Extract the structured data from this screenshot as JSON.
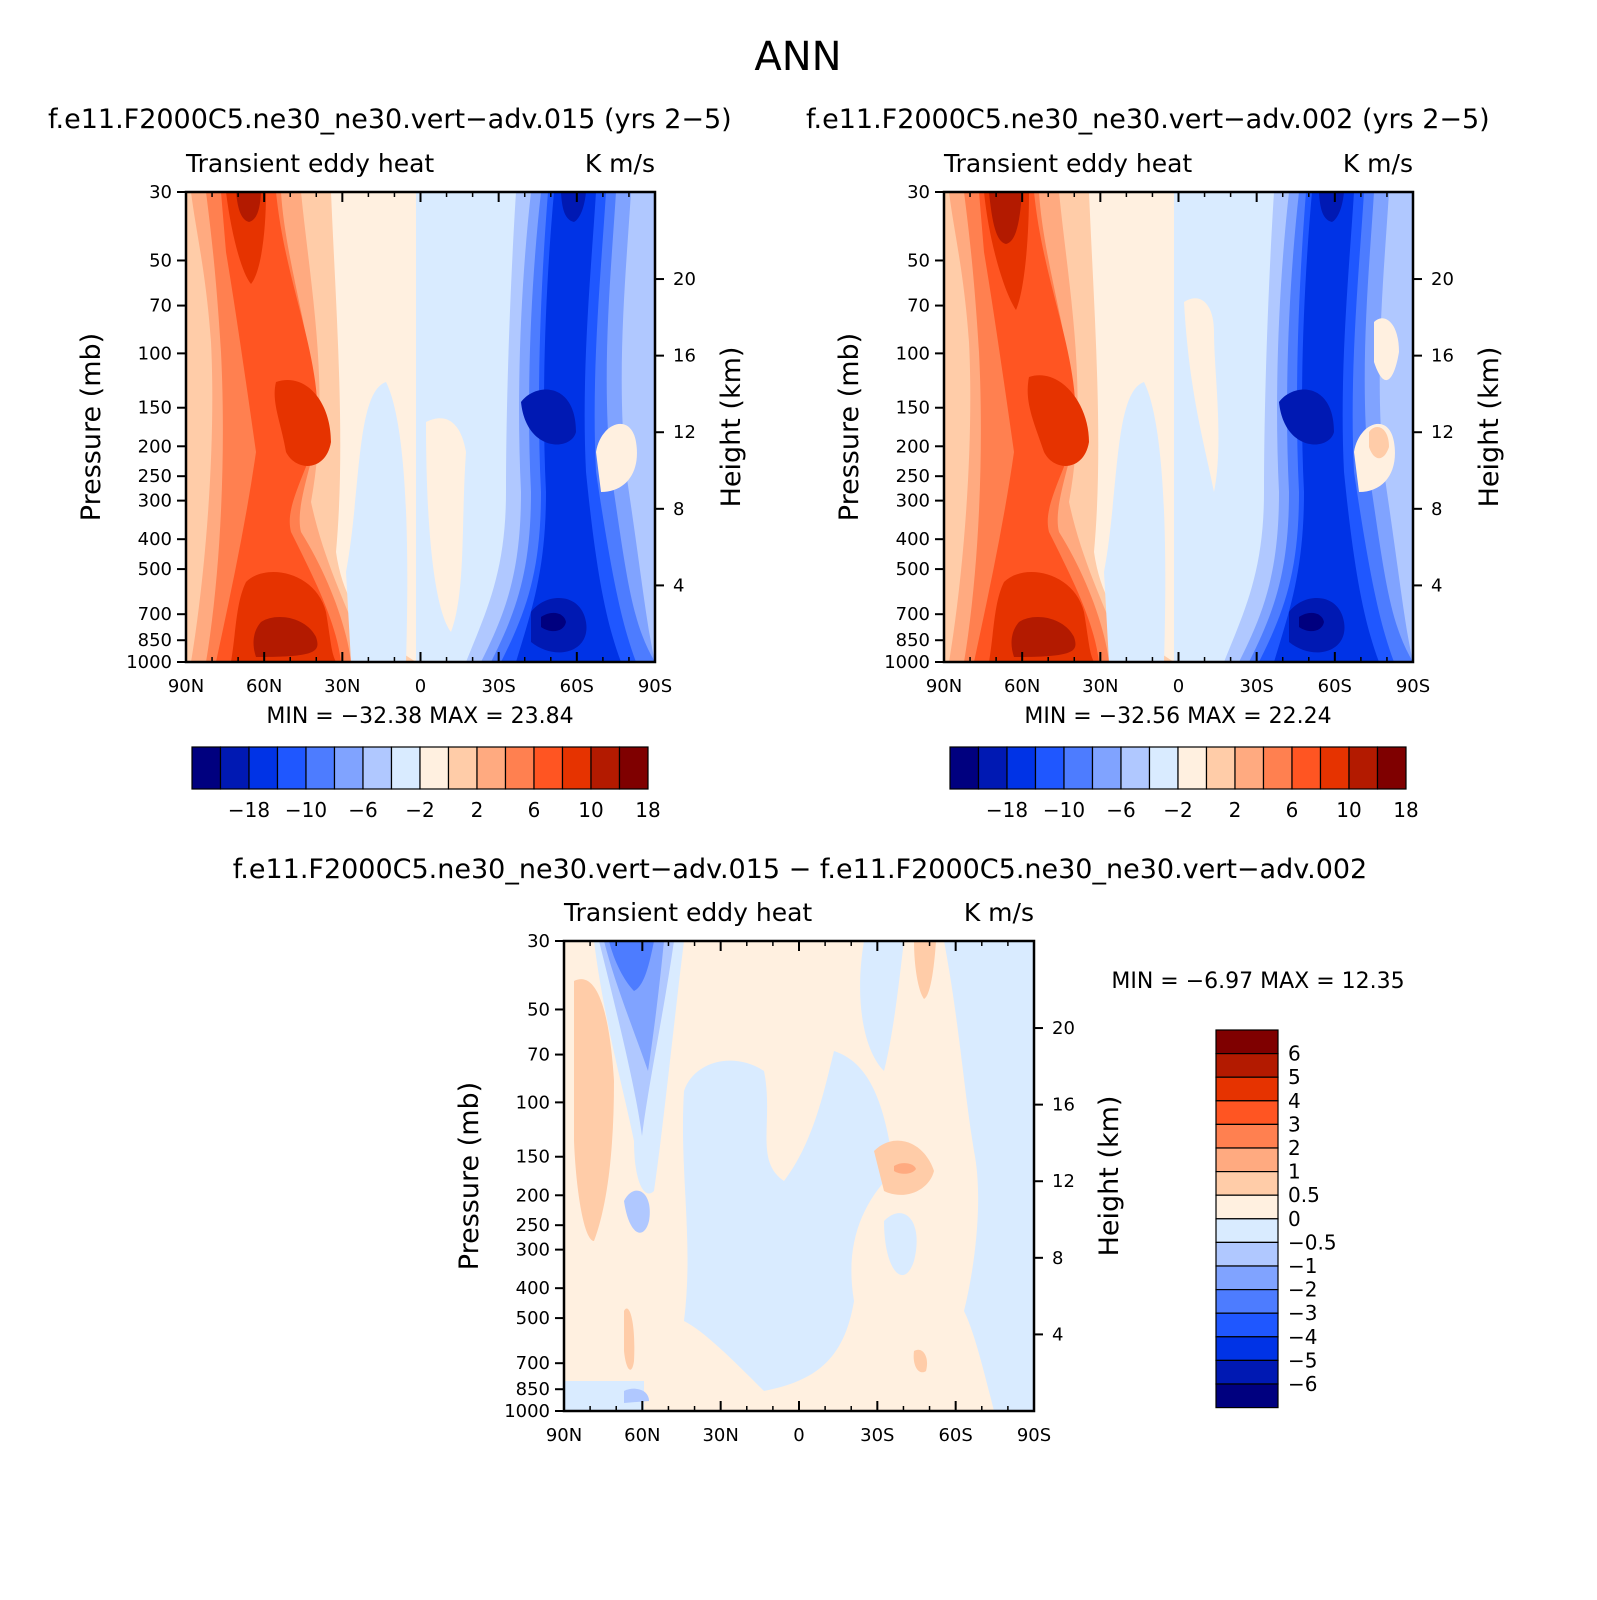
{
  "figure": {
    "title": "ANN"
  },
  "colors": {
    "abs_scale": [
      "#00007f",
      "#0019b3",
      "#0033e6",
      "#1f57ff",
      "#4d7cff",
      "#80a3ff",
      "#b0c8ff",
      "#d9ebff",
      "#fff0e0",
      "#ffcca8",
      "#ffaa80",
      "#ff8050",
      "#ff5522",
      "#e63300",
      "#b31a00",
      "#7f0000"
    ],
    "diff_scale": [
      "#00007f",
      "#0019b3",
      "#0033e6",
      "#1f57ff",
      "#4d7cff",
      "#80a3ff",
      "#b0c8ff",
      "#d9ebff",
      "#fff0e0",
      "#ffcca8",
      "#ffaa80",
      "#ff8050",
      "#ff5522",
      "#e63300",
      "#b31a00",
      "#7f0000"
    ]
  },
  "chart_data": [
    {
      "type": "heatmap",
      "title": "f.e11.F2000C5.ne30_ne30.vert−adv.015 (yrs 2−5)",
      "subtitle_left": "Transient eddy heat",
      "subtitle_right": "K m/s",
      "ylabel": "Pressure (mb)",
      "ylabel_right": "Height (km)",
      "x_ticks": [
        "90N",
        "60N",
        "30N",
        "0",
        "30S",
        "60S",
        "90S"
      ],
      "y_ticks": [
        "30",
        "50",
        "70",
        "100",
        "150",
        "200",
        "250",
        "300",
        "400",
        "500",
        "700",
        "850",
        "1000"
      ],
      "y_ticks_right": [
        "20",
        "16",
        "12",
        "8",
        "4"
      ],
      "stats": "MIN = −32.38   MAX =   23.84",
      "colorbar_labels": [
        "−18",
        "−10",
        "−6",
        "−2",
        "2",
        "6",
        "10",
        "18"
      ],
      "xlim": [
        90,
        -90
      ],
      "ylim": [
        1000,
        30
      ],
      "min": -32.38,
      "max": 23.84
    },
    {
      "type": "heatmap",
      "title": "f.e11.F2000C5.ne30_ne30.vert−adv.002 (yrs 2−5)",
      "subtitle_left": "Transient eddy heat",
      "subtitle_right": "K m/s",
      "ylabel": "Pressure (mb)",
      "ylabel_right": "Height (km)",
      "x_ticks": [
        "90N",
        "60N",
        "30N",
        "0",
        "30S",
        "60S",
        "90S"
      ],
      "y_ticks": [
        "30",
        "50",
        "70",
        "100",
        "150",
        "200",
        "250",
        "300",
        "400",
        "500",
        "700",
        "850",
        "1000"
      ],
      "y_ticks_right": [
        "20",
        "16",
        "12",
        "8",
        "4"
      ],
      "stats": "MIN = −32.56   MAX =   22.24",
      "colorbar_labels": [
        "−18",
        "−10",
        "−6",
        "−2",
        "2",
        "6",
        "10",
        "18"
      ],
      "xlim": [
        90,
        -90
      ],
      "ylim": [
        1000,
        30
      ],
      "min": -32.56,
      "max": 22.24
    },
    {
      "type": "heatmap",
      "title": "f.e11.F2000C5.ne30_ne30.vert−adv.015 − f.e11.F2000C5.ne30_ne30.vert−adv.002",
      "subtitle_left": "Transient eddy heat",
      "subtitle_right": "K m/s",
      "ylabel": "Pressure (mb)",
      "ylabel_right": "Height (km)",
      "x_ticks": [
        "90N",
        "60N",
        "30N",
        "0",
        "30S",
        "60S",
        "90S"
      ],
      "y_ticks": [
        "30",
        "50",
        "70",
        "100",
        "150",
        "200",
        "250",
        "300",
        "400",
        "500",
        "700",
        "850",
        "1000"
      ],
      "y_ticks_right": [
        "20",
        "16",
        "12",
        "8",
        "4"
      ],
      "stats": "MIN =    −6.97   MAX =    12.35",
      "colorbar_labels": [
        "6",
        "5",
        "4",
        "3",
        "2",
        "1",
        "0.5",
        "0",
        "−0.5",
        "−1",
        "−2",
        "−3",
        "−4",
        "−5",
        "−6"
      ],
      "xlim": [
        90,
        -90
      ],
      "ylim": [
        1000,
        30
      ],
      "min": -6.97,
      "max": 12.35
    }
  ]
}
